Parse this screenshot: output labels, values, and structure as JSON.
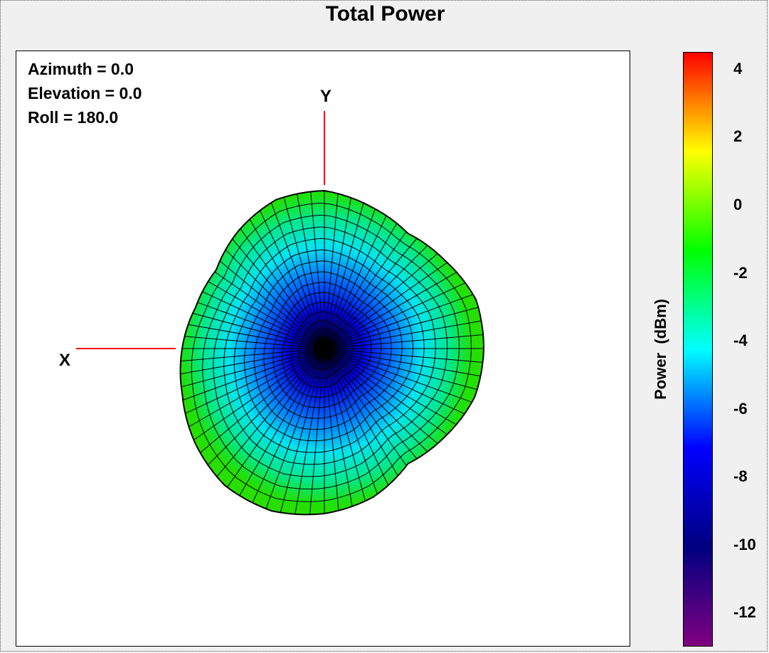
{
  "title": "Total Power",
  "view": {
    "azimuth_label": "Azimuth = 0.0",
    "elevation_label": "Elevation = 0.0",
    "roll_label": "Roll = 180.0"
  },
  "axes": {
    "x_label": "X",
    "y_label": "Y",
    "axis_color": "#ff0000"
  },
  "colorbar": {
    "title": "Power  (dBm)",
    "ticks": [
      "4",
      "2",
      "0",
      "-2",
      "-4",
      "-6",
      "-8",
      "-10",
      "-12"
    ],
    "range": [
      -13,
      4.5
    ],
    "colors": [
      "#800080",
      "#000080",
      "#0000ff",
      "#00ffff",
      "#00ff00",
      "#ffff00",
      "#ff0000"
    ]
  },
  "chart_data": {
    "type": "3d-radiation-pattern",
    "title": "Total Power",
    "quantity": "Power (dBm)",
    "color_range_dbm": [
      -12,
      4
    ],
    "view": {
      "azimuth": 0.0,
      "elevation": 0.0,
      "roll": 180.0
    },
    "center_power_dbm": -10,
    "edge_power_dbm": -1,
    "mesh": "wireframe surface, black grid lines"
  }
}
